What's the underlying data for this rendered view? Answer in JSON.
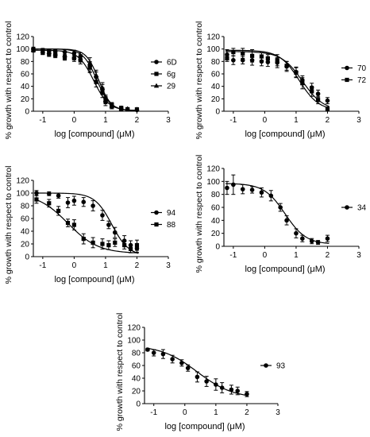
{
  "chart_data": [
    {
      "type": "scatter",
      "xlabel": "log [compound] (μM)",
      "ylabel": "% growth with respect to control",
      "xlim": [
        -1.3,
        3
      ],
      "ylim": [
        0,
        120
      ],
      "xticks": [
        -1,
        0,
        1,
        2,
        3
      ],
      "yticks": [
        0,
        20,
        40,
        60,
        80,
        100,
        120
      ],
      "legend": "right",
      "series": [
        {
          "name": "6D",
          "marker": "circle",
          "x": [
            -1.3,
            -1.0,
            -0.8,
            -0.6,
            -0.3,
            0.0,
            0.2,
            0.5,
            0.7,
            0.9,
            1.0,
            1.2,
            1.5,
            1.7,
            2.0
          ],
          "y": [
            100,
            98,
            97,
            96,
            95,
            93,
            88,
            72,
            55,
            35,
            15,
            8,
            5,
            3,
            2
          ],
          "err": [
            3,
            3,
            3,
            3,
            4,
            5,
            6,
            8,
            8,
            8,
            6,
            4,
            3,
            2,
            2
          ],
          "fit": [
            100,
            1,
            0.72,
            2.0
          ]
        },
        {
          "name": "6g",
          "marker": "square",
          "x": [
            -1.3,
            -1.0,
            -0.8,
            -0.6,
            -0.3,
            0.0,
            0.2,
            0.5,
            0.7,
            0.9,
            1.0,
            1.2,
            1.5,
            1.7,
            2.0
          ],
          "y": [
            98,
            94,
            92,
            90,
            86,
            85,
            82,
            70,
            47,
            30,
            20,
            10,
            4,
            3,
            3
          ],
          "err": [
            3,
            3,
            4,
            4,
            4,
            5,
            6,
            8,
            8,
            8,
            6,
            4,
            3,
            2,
            2
          ],
          "fit": [
            98,
            1,
            0.62,
            1.8
          ]
        },
        {
          "name": "29",
          "marker": "triangle",
          "x": [
            -1.3,
            -1.0,
            -0.8,
            -0.6,
            -0.3,
            0.0,
            0.2,
            0.5,
            0.7,
            0.9,
            1.0,
            1.2,
            1.5,
            1.7,
            2.0
          ],
          "y": [
            99,
            97,
            95,
            93,
            90,
            88,
            85,
            77,
            58,
            38,
            18,
            8,
            5,
            4,
            3
          ],
          "err": [
            3,
            3,
            3,
            3,
            4,
            5,
            6,
            9,
            8,
            8,
            6,
            4,
            3,
            2,
            2
          ],
          "fit": [
            100,
            1,
            0.78,
            2.2
          ]
        }
      ]
    },
    {
      "type": "scatter",
      "xlabel": "log [compound] (μM)",
      "ylabel": "% growth with respect to control",
      "xlim": [
        -1.3,
        3
      ],
      "ylim": [
        0,
        120
      ],
      "xticks": [
        -1,
        0,
        1,
        2,
        3
      ],
      "yticks": [
        0,
        20,
        40,
        60,
        80,
        100,
        120
      ],
      "legend": "right",
      "series": [
        {
          "name": "70",
          "marker": "circle",
          "x": [
            -1.2,
            -1.0,
            -0.7,
            -0.4,
            -0.1,
            0.1,
            0.4,
            0.7,
            1.0,
            1.2,
            1.5,
            1.7,
            2.0
          ],
          "y": [
            91,
            82,
            82,
            82,
            80,
            79,
            78,
            72,
            63,
            50,
            38,
            28,
            17
          ],
          "err": [
            8,
            7,
            6,
            8,
            7,
            7,
            8,
            8,
            8,
            7,
            7,
            6,
            5
          ],
          "fit": [
            96,
            1,
            1.2,
            1.3
          ]
        },
        {
          "name": "72",
          "marker": "square",
          "x": [
            -1.2,
            -1.0,
            -0.7,
            -0.4,
            -0.1,
            0.1,
            0.4,
            0.7,
            1.0,
            1.2,
            1.5,
            1.7,
            2.0
          ],
          "y": [
            85,
            95,
            93,
            89,
            88,
            85,
            82,
            73,
            62,
            45,
            32,
            18,
            4
          ],
          "err": [
            5,
            6,
            8,
            10,
            6,
            6,
            9,
            7,
            8,
            9,
            8,
            6,
            3
          ],
          "fit": [
            98,
            1,
            1.1,
            1.4
          ]
        }
      ]
    },
    {
      "type": "scatter",
      "xlabel": "log [compound] (μM)",
      "ylabel": "% growth with respect to control",
      "xlim": [
        -1.3,
        3
      ],
      "ylim": [
        0,
        120
      ],
      "xticks": [
        -1,
        0,
        1,
        2,
        3
      ],
      "yticks": [
        0,
        20,
        40,
        60,
        80,
        100,
        120
      ],
      "legend": "right",
      "series": [
        {
          "name": "94",
          "marker": "circle",
          "x": [
            -1.2,
            -0.8,
            -0.5,
            -0.2,
            0.0,
            0.3,
            0.6,
            0.9,
            1.1,
            1.3,
            1.6,
            1.8,
            2.0
          ],
          "y": [
            100,
            99,
            96,
            85,
            88,
            86,
            80,
            65,
            50,
            38,
            25,
            18,
            13
          ],
          "err": [
            4,
            3,
            4,
            8,
            7,
            7,
            8,
            8,
            6,
            8,
            8,
            7,
            6
          ],
          "fit": [
            100,
            1,
            1.2,
            1.6
          ]
        },
        {
          "name": "88",
          "marker": "square",
          "x": [
            -1.2,
            -0.8,
            -0.5,
            -0.2,
            0.0,
            0.3,
            0.6,
            0.9,
            1.1,
            1.3,
            1.6,
            1.8,
            2.0
          ],
          "y": [
            90,
            84,
            72,
            53,
            50,
            28,
            22,
            20,
            18,
            22,
            18,
            12,
            18
          ],
          "err": [
            6,
            6,
            7,
            6,
            8,
            8,
            8,
            8,
            7,
            6,
            6,
            6,
            8
          ],
          "fit": [
            100,
            5,
            -0.2,
            0.9
          ]
        }
      ]
    },
    {
      "type": "scatter",
      "xlabel": "log [compound] (μM)",
      "ylabel": "% growth with respect to control",
      "xlim": [
        -1.3,
        3
      ],
      "ylim": [
        0,
        120
      ],
      "xticks": [
        -1,
        0,
        1,
        2,
        3
      ],
      "yticks": [
        0,
        20,
        40,
        60,
        80,
        100,
        120
      ],
      "legend": "right",
      "series": [
        {
          "name": "34",
          "marker": "circle",
          "x": [
            -1.2,
            -1.0,
            -0.7,
            -0.4,
            -0.1,
            0.2,
            0.5,
            0.7,
            1.0,
            1.2,
            1.5,
            1.7,
            2.0
          ],
          "y": [
            90,
            95,
            88,
            87,
            83,
            78,
            60,
            40,
            20,
            12,
            8,
            6,
            12
          ],
          "err": [
            10,
            15,
            7,
            5,
            7,
            8,
            6,
            7,
            7,
            5,
            4,
            3,
            5
          ],
          "fit": [
            97,
            3,
            0.65,
            1.3
          ]
        }
      ]
    },
    {
      "type": "scatter",
      "xlabel": "log [compound] (μM)",
      "ylabel": "% growth with respect to control",
      "xlim": [
        -1.3,
        3
      ],
      "ylim": [
        0,
        120
      ],
      "xticks": [
        -1,
        0,
        1,
        2,
        3
      ],
      "yticks": [
        0,
        20,
        40,
        60,
        80,
        100,
        120
      ],
      "legend": "right",
      "series": [
        {
          "name": "93",
          "marker": "circle",
          "x": [
            -1.2,
            -1.0,
            -0.7,
            -0.4,
            -0.1,
            0.1,
            0.4,
            0.7,
            1.0,
            1.2,
            1.5,
            1.7,
            2.0
          ],
          "y": [
            85,
            80,
            78,
            70,
            64,
            56,
            42,
            35,
            30,
            25,
            22,
            20,
            15
          ],
          "err": [
            2,
            5,
            7,
            6,
            5,
            5,
            8,
            8,
            9,
            8,
            7,
            6,
            4
          ],
          "fit": [
            92,
            8,
            0.4,
            0.75
          ]
        }
      ]
    }
  ]
}
